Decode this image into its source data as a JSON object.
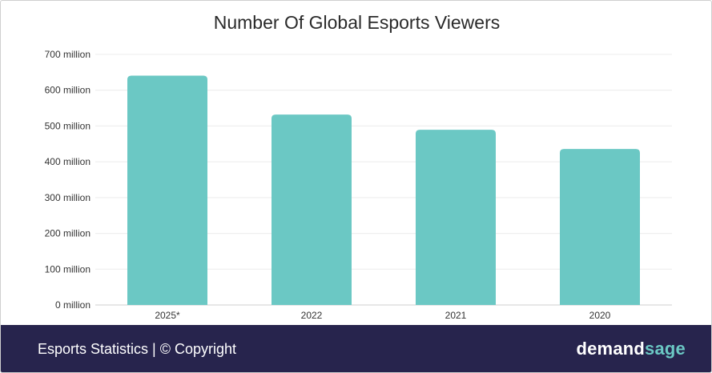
{
  "chart_data": {
    "type": "bar",
    "title": "Number Of Global Esports Viewers",
    "categories": [
      "2025*",
      "2022",
      "2021",
      "2020"
    ],
    "values": [
      640.8,
      532,
      489.5,
      435.9
    ],
    "ylim": [
      0,
      700
    ],
    "yticks": [
      0,
      100,
      200,
      300,
      400,
      500,
      600,
      700
    ],
    "ytick_labels": [
      "0 million",
      "100 million",
      "200 million",
      "300 million",
      "400 million",
      "500 million",
      "600 million",
      "700 million"
    ],
    "xlabel": "",
    "ylabel": "",
    "grid": true,
    "bar_color": "#6bc8c4"
  },
  "footer": {
    "left_text": "Esports Statistics | © Copyright",
    "brand_part1": "demand",
    "brand_part2": "sage",
    "background": "#27244d",
    "accent": "#6bc8c4"
  }
}
